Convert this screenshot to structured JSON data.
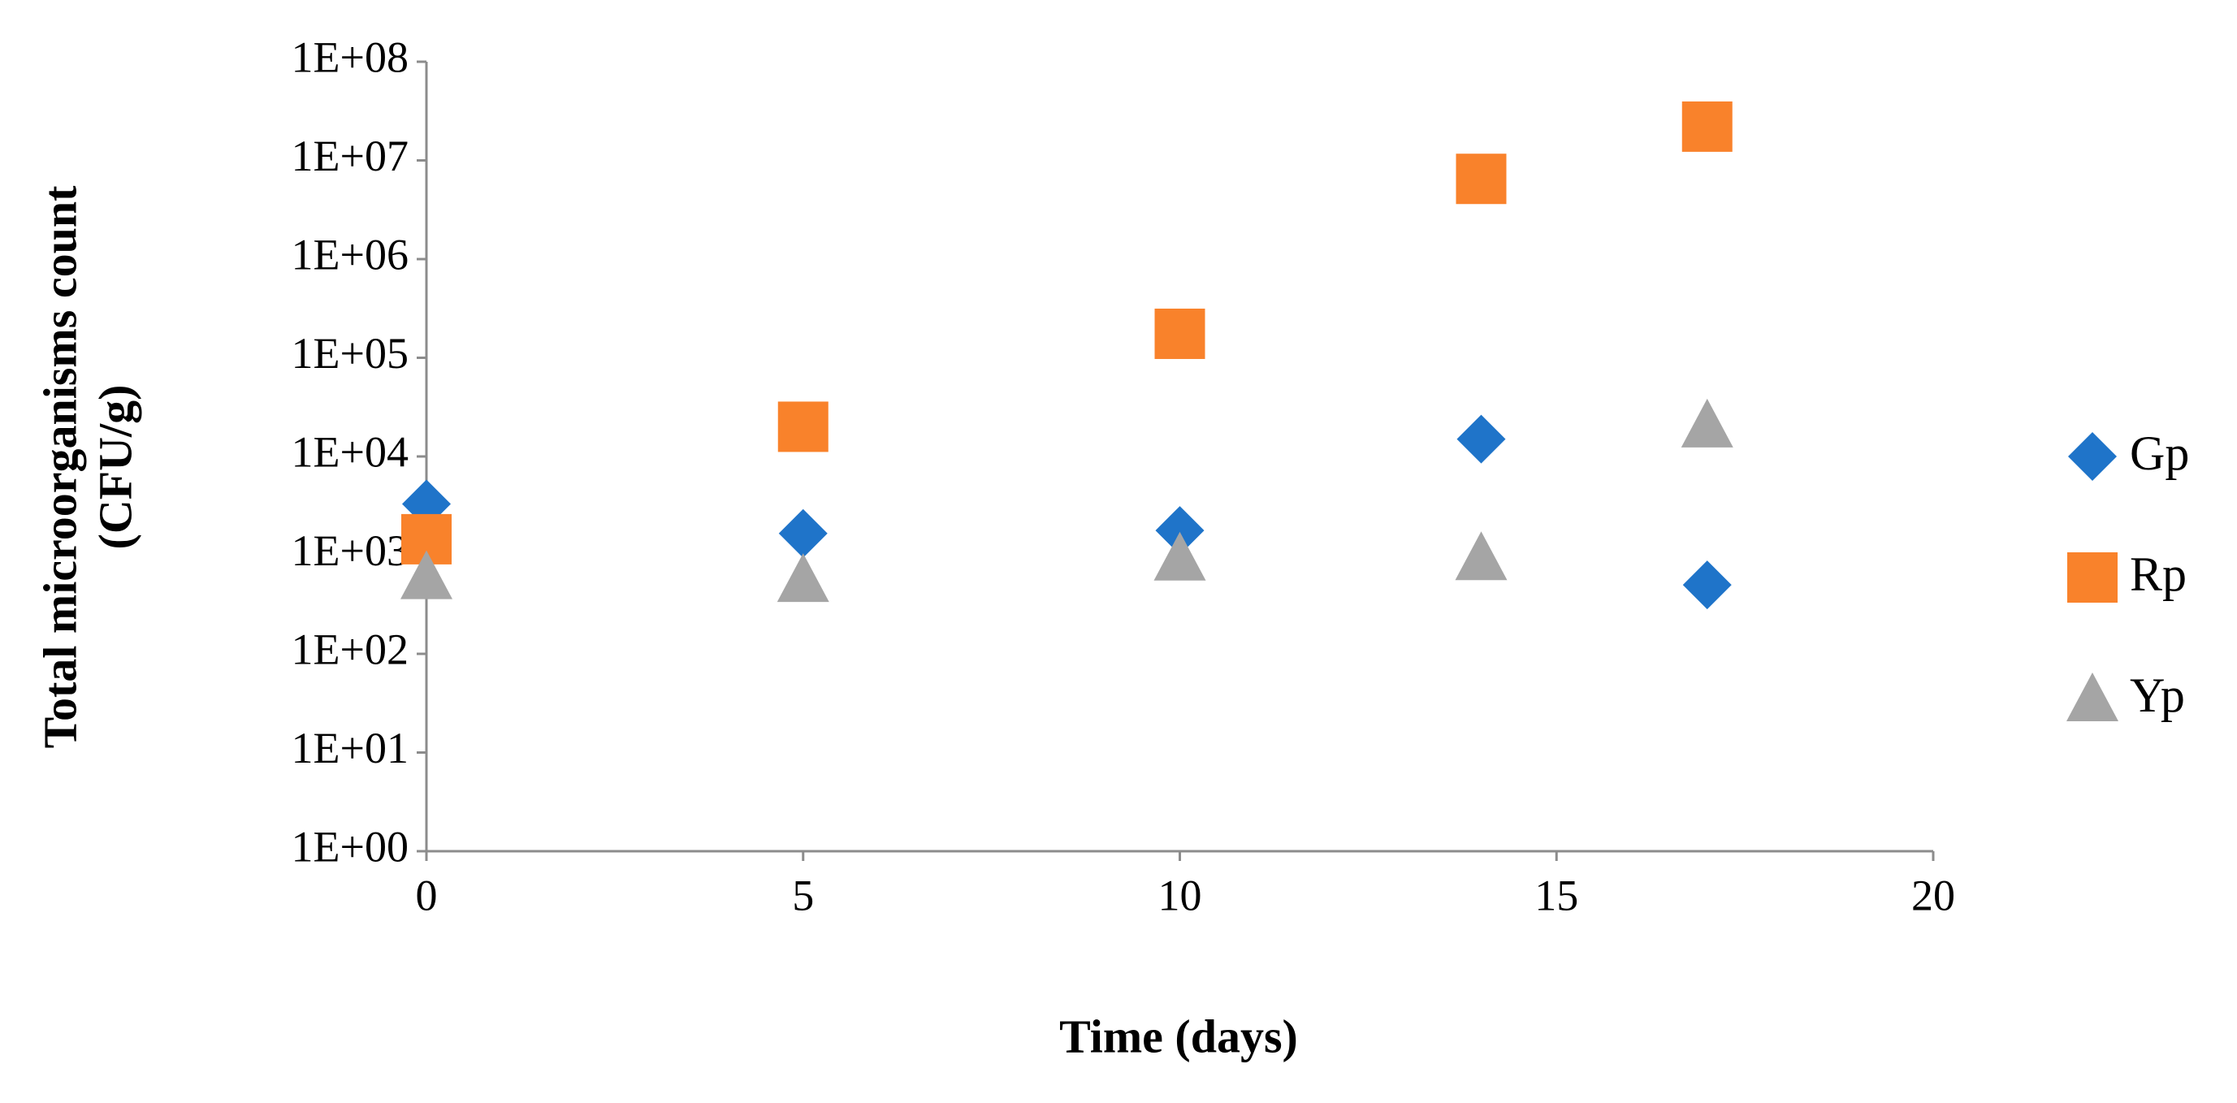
{
  "chart_data": {
    "type": "scatter",
    "x_label": "Time (days)",
    "y_label": [
      "Total microorganisms count",
      "(CFU/g)"
    ],
    "x": [
      0,
      5,
      10,
      14,
      17
    ],
    "series": [
      {
        "name": "Gp",
        "color": "#1f74c9",
        "marker": "diamond",
        "values": [
          3300,
          1660,
          1780,
          15000,
          500
        ]
      },
      {
        "name": "Rp",
        "color": "#f9822b",
        "marker": "square",
        "values": [
          1450,
          20000,
          175000,
          6500000,
          22000000
        ]
      },
      {
        "name": "Yp",
        "color": "#a5a5a5",
        "marker": "triangle",
        "values": [
          610,
          570,
          940,
          950,
          21000
        ]
      }
    ],
    "xlim": [
      0,
      20
    ],
    "xticks": [
      0,
      5,
      10,
      15,
      20
    ],
    "ylim": [
      1,
      100000000
    ],
    "log_y": true,
    "yticks": [
      {
        "value": 1,
        "label": "1E+00"
      },
      {
        "value": 10,
        "label": "1E+01"
      },
      {
        "value": 100,
        "label": "1E+02"
      },
      {
        "value": 1000,
        "label": "1E+03"
      },
      {
        "value": 10000,
        "label": "1E+04"
      },
      {
        "value": 100000,
        "label": "1E+05"
      },
      {
        "value": 1000000,
        "label": "1E+06"
      },
      {
        "value": 10000000,
        "label": "1E+07"
      },
      {
        "value": 100000000,
        "label": "1E+08"
      }
    ],
    "legend": "right"
  }
}
